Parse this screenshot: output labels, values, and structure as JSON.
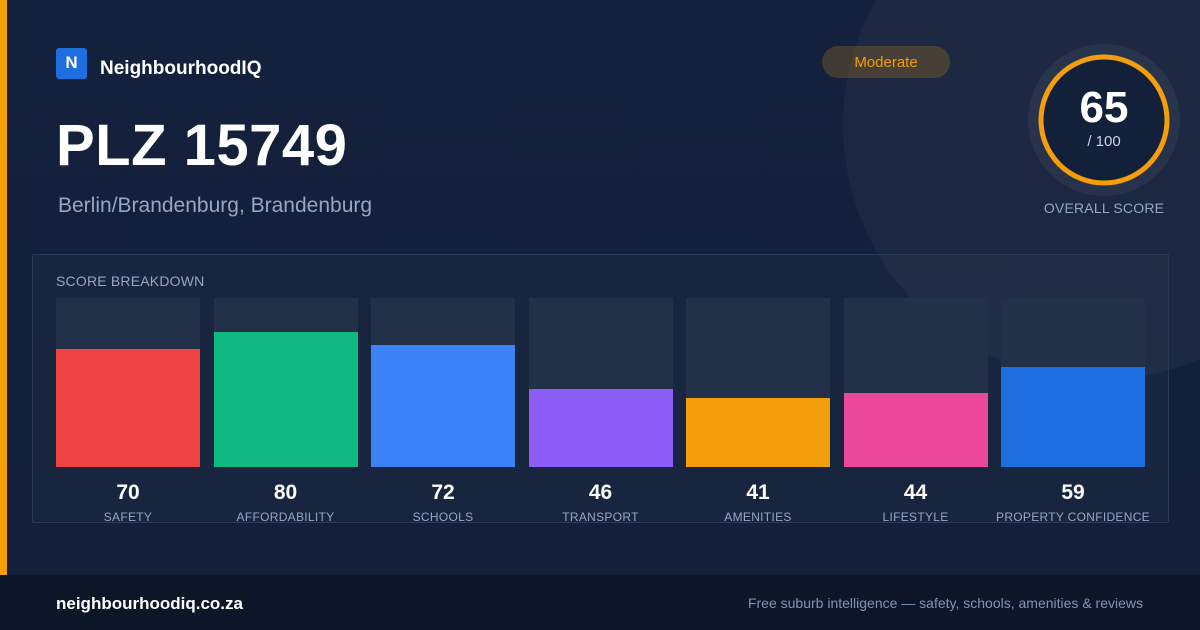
{
  "brand": {
    "logo_letter": "N",
    "name": "NeighbourhoodIQ"
  },
  "header": {
    "title": "PLZ 15749",
    "subtitle": "Berlin/Brandenburg, Brandenburg"
  },
  "badge": {
    "label": "Moderate",
    "color": "#f59e0b"
  },
  "overall": {
    "score": "65",
    "max_label": "/ 100",
    "score_value": 65,
    "max_value": 100,
    "label": "OVERALL SCORE",
    "ring_color": "#f59e0b"
  },
  "breakdown": {
    "title": "SCORE BREAKDOWN",
    "max": 100,
    "items": [
      {
        "label": "SAFETY",
        "value": "70",
        "score": 70,
        "color": "#ef4444"
      },
      {
        "label": "AFFORDABILITY",
        "value": "80",
        "score": 80,
        "color": "#10b981"
      },
      {
        "label": "SCHOOLS",
        "value": "72",
        "score": 72,
        "color": "#3b82f6"
      },
      {
        "label": "TRANSPORT",
        "value": "46",
        "score": 46,
        "color": "#8b5cf6"
      },
      {
        "label": "AMENITIES",
        "value": "41",
        "score": 41,
        "color": "#f59e0b"
      },
      {
        "label": "LIFESTYLE",
        "value": "44",
        "score": 44,
        "color": "#ec4899"
      },
      {
        "label": "PROPERTY CONFIDENCE",
        "value": "59",
        "score": 59,
        "color": "#1d6fe0"
      }
    ]
  },
  "footer": {
    "domain": "neighbourhoodiq.co.za",
    "tagline": "Free suburb intelligence — safety, schools, amenities & reviews"
  }
}
